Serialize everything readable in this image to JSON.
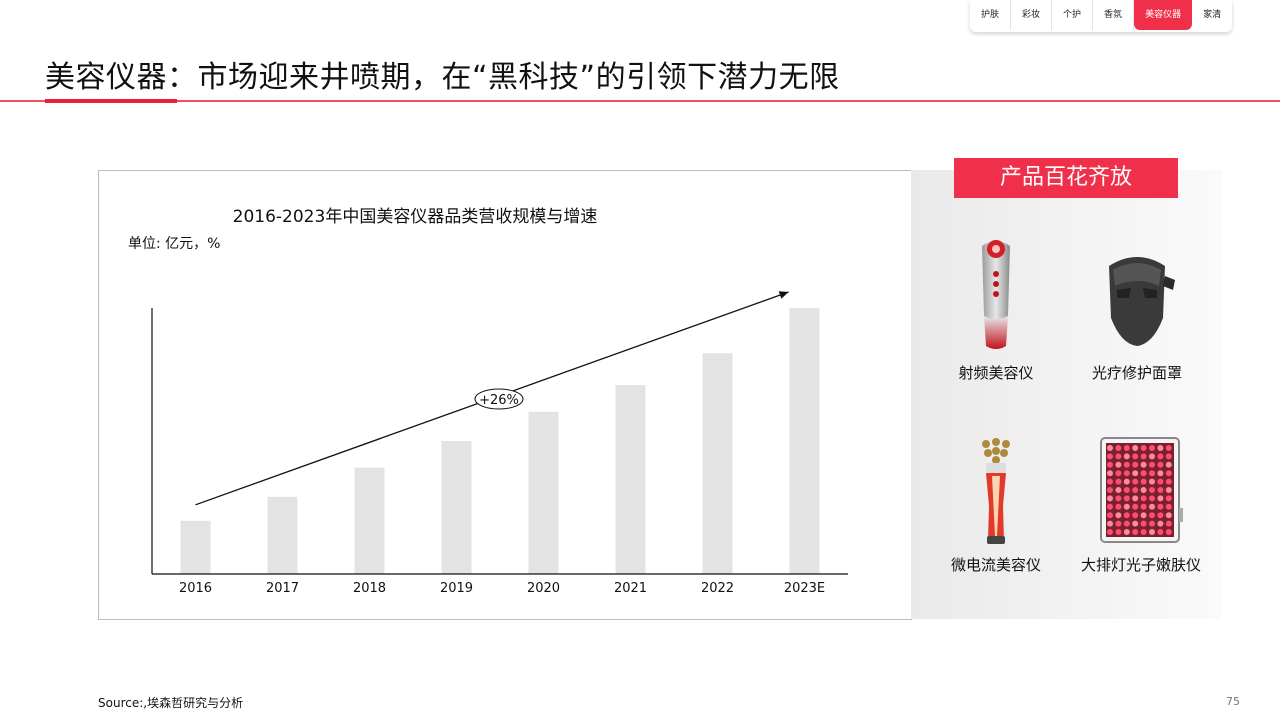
{
  "nav": {
    "tabs": [
      {
        "label": "护肤",
        "active": false
      },
      {
        "label": "彩妆",
        "active": false
      },
      {
        "label": "个护",
        "active": false
      },
      {
        "label": "香氛",
        "active": false
      },
      {
        "label": "美容仪器",
        "active": true
      },
      {
        "label": "家清",
        "active": false
      }
    ]
  },
  "page": {
    "title": "美容仪器：市场迎来井喷期，在“黑科技”的引领下潜力无限",
    "source": "Source:,埃森哲研究与分析",
    "page_number": "75"
  },
  "colors": {
    "accent": "#f0304a",
    "bar": "#e3e3e3",
    "axis": "#111111"
  },
  "chart_data": {
    "type": "bar",
    "title": "2016-2023年中国美容仪器品类营收规模与增速",
    "unit_label": "单位: 亿元，%",
    "categories": [
      "2016",
      "2017",
      "2018",
      "2019",
      "2020",
      "2021",
      "2022",
      "2023E"
    ],
    "values": [
      20,
      29,
      40,
      50,
      61,
      71,
      83,
      100
    ],
    "grid": false,
    "annotation": {
      "text": "+26%",
      "type": "trend-arrow"
    }
  },
  "products": {
    "header": "产品百花齐放",
    "items": [
      {
        "name": "射频美容仪",
        "icon": "rf-beauty-device-icon"
      },
      {
        "name": "光疗修护面罩",
        "icon": "led-mask-icon"
      },
      {
        "name": "微电流美容仪",
        "icon": "microcurrent-device-icon"
      },
      {
        "name": "大排灯光子嫩肤仪",
        "icon": "led-panel-icon"
      }
    ]
  }
}
